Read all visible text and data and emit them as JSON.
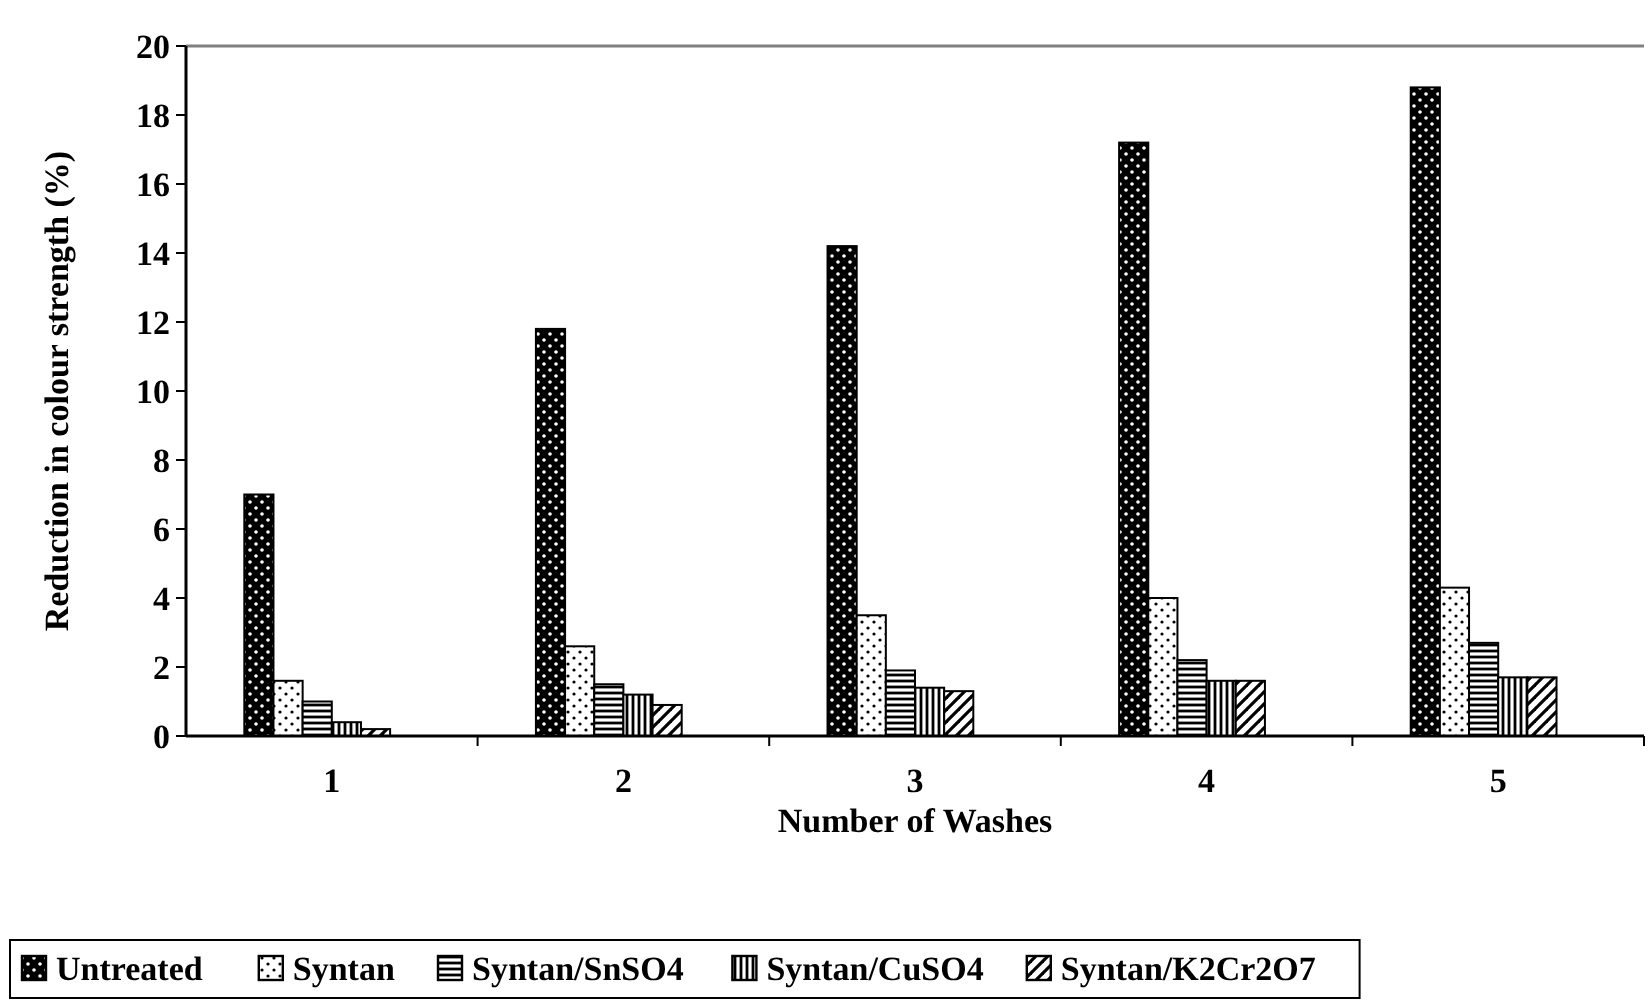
{
  "chart_data": {
    "type": "bar",
    "xlabel": "Number of Washes",
    "ylabel": "Reduction in colour strength (%)",
    "categories": [
      "1",
      "2",
      "3",
      "4",
      "5"
    ],
    "series": [
      {
        "name": "Untreated",
        "color": "#000000",
        "values": [
          7.0,
          11.8,
          14.2,
          17.2,
          18.8
        ]
      },
      {
        "name": "Syntan",
        "color": "#000000",
        "values": [
          1.6,
          2.6,
          3.5,
          4.0,
          4.3
        ]
      },
      {
        "name": "Syntan/SnSO4",
        "color": "#000000",
        "values": [
          1.0,
          1.5,
          1.9,
          2.2,
          2.7
        ]
      },
      {
        "name": "Syntan/CuSO4",
        "color": "#000000",
        "values": [
          0.4,
          1.2,
          1.4,
          1.6,
          1.7
        ]
      },
      {
        "name": "Syntan/K2Cr2O7",
        "color": "#000000",
        "values": [
          0.2,
          0.9,
          1.3,
          1.6,
          1.7
        ]
      }
    ],
    "ylim": [
      0,
      20
    ],
    "yticks": [
      0,
      2,
      4,
      6,
      8,
      10,
      12,
      14,
      16,
      18,
      20
    ],
    "grid": false,
    "legend": "bottom"
  }
}
